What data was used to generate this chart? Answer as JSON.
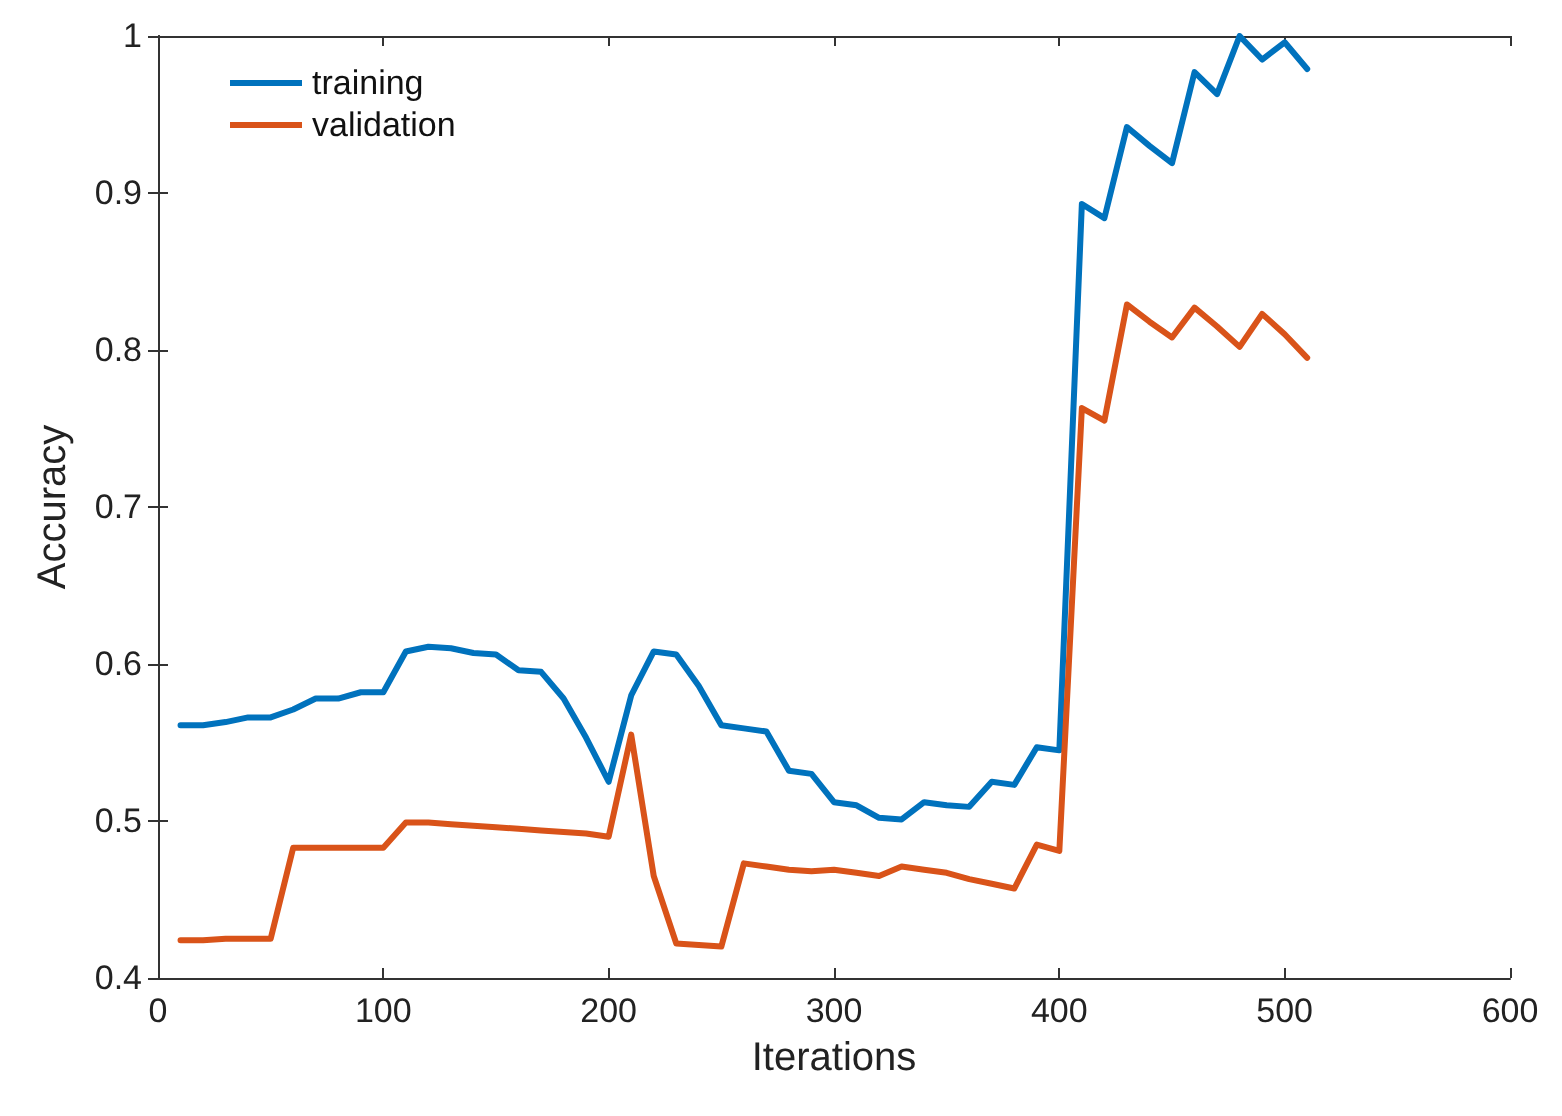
{
  "chart_data": {
    "type": "line",
    "xlabel": "Iterations",
    "ylabel": "Accuracy",
    "x": [
      10,
      20,
      30,
      40,
      50,
      60,
      70,
      80,
      90,
      100,
      110,
      120,
      130,
      140,
      150,
      160,
      170,
      180,
      190,
      200,
      210,
      220,
      230,
      240,
      250,
      260,
      270,
      280,
      290,
      300,
      310,
      320,
      330,
      340,
      350,
      360,
      370,
      380,
      390,
      400,
      410,
      420,
      430,
      440,
      450,
      460,
      470,
      480,
      490,
      500,
      510
    ],
    "series": [
      {
        "name": "training",
        "color": "#0072bd",
        "values": [
          0.561,
          0.561,
          0.563,
          0.566,
          0.566,
          0.571,
          0.578,
          0.578,
          0.582,
          0.582,
          0.608,
          0.611,
          0.61,
          0.607,
          0.606,
          0.596,
          0.595,
          0.578,
          0.553,
          0.525,
          0.58,
          0.608,
          0.606,
          0.586,
          0.561,
          0.559,
          0.557,
          0.532,
          0.53,
          0.512,
          0.51,
          0.502,
          0.501,
          0.512,
          0.51,
          0.509,
          0.525,
          0.523,
          0.547,
          0.545,
          0.893,
          0.884,
          0.942,
          0.93,
          0.919,
          0.977,
          0.963,
          1.0,
          0.985,
          0.996,
          0.979
        ]
      },
      {
        "name": "validation",
        "color": "#d95319",
        "values": [
          0.424,
          0.424,
          0.425,
          0.425,
          0.425,
          0.483,
          0.483,
          0.483,
          0.483,
          0.483,
          0.499,
          0.499,
          0.498,
          0.497,
          0.496,
          0.495,
          0.494,
          0.493,
          0.492,
          0.49,
          0.555,
          0.465,
          0.422,
          0.421,
          0.42,
          0.473,
          0.471,
          0.469,
          0.468,
          0.469,
          0.467,
          0.465,
          0.471,
          0.469,
          0.467,
          0.463,
          0.46,
          0.457,
          0.485,
          0.481,
          0.763,
          0.755,
          0.829,
          0.818,
          0.808,
          0.827,
          0.815,
          0.802,
          0.823,
          0.81,
          0.795
        ]
      }
    ],
    "xlim": [
      0,
      600
    ],
    "xticks": [
      0,
      100,
      200,
      300,
      400,
      500,
      600
    ],
    "ylim": [
      0.4,
      1
    ],
    "yticks": [
      0.4,
      0.5,
      0.6,
      0.7,
      0.8,
      0.9,
      1
    ],
    "grid": false,
    "legend": "top left",
    "marker": "none",
    "line_style": "solid"
  }
}
